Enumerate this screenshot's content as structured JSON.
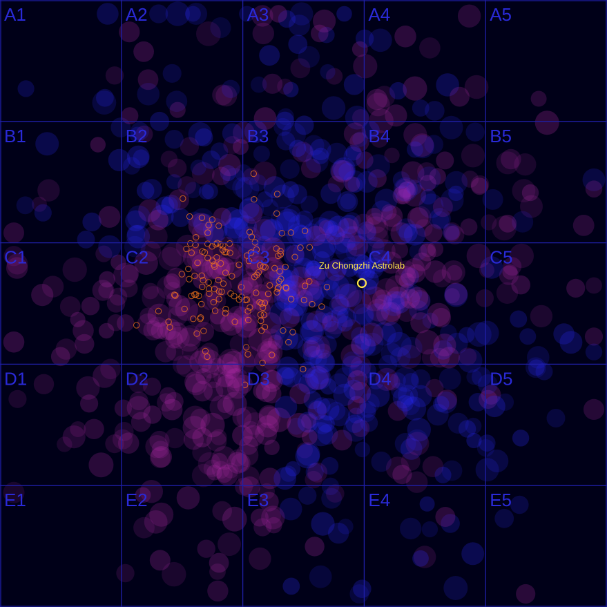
{
  "map": {
    "rows": [
      "A",
      "B",
      "C",
      "D",
      "E"
    ],
    "columns": [
      "1",
      "2",
      "3",
      "4",
      "5"
    ],
    "cells": [
      [
        "A1",
        "A2",
        "A3",
        "A4",
        "A5"
      ],
      [
        "B1",
        "B2",
        "B3",
        "B4",
        "B5"
      ],
      [
        "C1",
        "C2",
        "C3",
        "C4",
        "C5"
      ],
      [
        "D1",
        "D2",
        "D3",
        "D4",
        "D5"
      ],
      [
        "E1",
        "E2",
        "E3",
        "E4",
        "E5"
      ]
    ],
    "grid_color": "#1f1fa8",
    "label_color": "#2a2ad8",
    "background": "#000018"
  },
  "target": {
    "label": "Zu Chongzhi Astrolab",
    "color": "#ffe64a"
  },
  "colors": {
    "star_blue": "#2a2aff",
    "star_magenta": "#b02aa8",
    "contact_orange": "#ff7a1a"
  }
}
